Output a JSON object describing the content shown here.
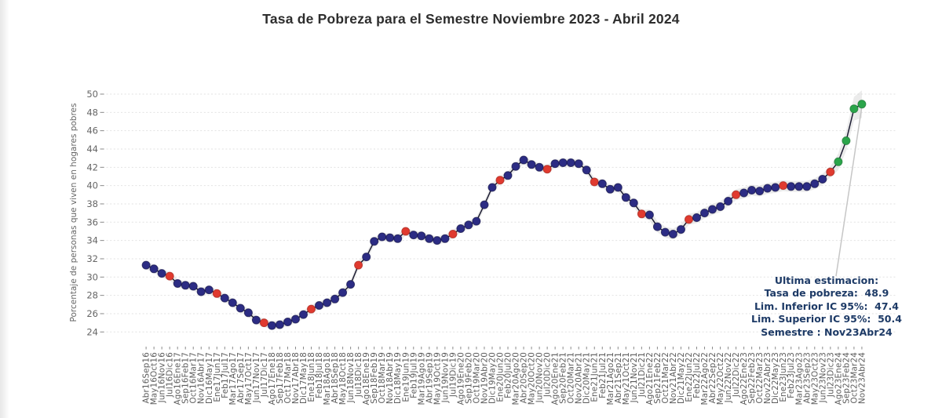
{
  "title": "Tasa de Pobreza para el Semestre Noviembre 2023 - Abril 2024",
  "annotation": {
    "lines": [
      "Ultima estimacion:",
      "Tasa de pobreza:  48.9",
      "Lim. Inferior IC 95%:  47.4",
      "Lim. Superior IC 95%:  50.4",
      "Semestre : Nov23Abr24"
    ],
    "ultima_estimacion": {
      "tasa_de_pobreza": 48.9,
      "lim_inferior_ic95": 47.4,
      "lim_superior_ic95": 50.4,
      "semestre": "Nov23Abr24"
    }
  },
  "colors": {
    "point_nowcast": "#2c2c84",
    "point_nowcast_edge": "#17174d",
    "point_official": "#e03a2f",
    "point_official_edge": "#a9251c",
    "point_estimate": "#2aa54a",
    "point_estimate_edge": "#1d7a35",
    "series_line": "#1d1d33",
    "grid": "#e2e2e2",
    "tick": "#8a8a8a",
    "axis_text": "#666666",
    "ci_band": "#d8d8d8",
    "arrow": "#c6c6c6",
    "annotation_text": "#1d3a66"
  },
  "chart_data": {
    "type": "line",
    "title": "Tasa de Pobreza para el Semestre Noviembre 2023 - Abril 2024",
    "xlabel": "",
    "ylabel": "Porcentaje de personas que viven en hogares pobres",
    "ylim": [
      24,
      50
    ],
    "y_ticks": [
      24,
      26,
      28,
      30,
      32,
      34,
      36,
      38,
      40,
      42,
      44,
      46,
      48,
      50
    ],
    "grid": true,
    "legend": "none",
    "categories": [
      "Abr16Sep16",
      "May16Oct16",
      "Jun16Nov16",
      "Jul16Dic16",
      "Ago16Ene17",
      "Sep16Feb17",
      "Oct16Mar17",
      "Nov16Abr17",
      "Dic16May17",
      "Ene17Jun17",
      "Feb17Jul17",
      "Mar17Ago17",
      "Abr17Sep17",
      "May17Oct17",
      "Jun17Nov17",
      "Jul17Dic17",
      "Ago17Ene18",
      "Sep17Feb18",
      "Oct17Mar18",
      "Nov17Abr18",
      "Dic17May18",
      "Ene18Jun18",
      "Feb18Jul18",
      "Mar18Ago18",
      "Abr18Sep18",
      "May18Oct18",
      "Jun18Nov18",
      "Jul18Dic18",
      "Ago18Ene19",
      "Sep18Feb19",
      "Oct18Mar19",
      "Nov18Abr19",
      "Dic18May19",
      "Ene19Jun19",
      "Feb19Jul19",
      "Mar19Ago19",
      "Abr19Sep19",
      "May19Oct19",
      "Jun19Nov19",
      "Jul19Dic19",
      "Ago19Ene20",
      "Sep19Feb20",
      "Oct19Mar20",
      "Nov19Abr20",
      "Dic19May20",
      "Ene20Jun20",
      "Feb20Jul20",
      "Mar20Ago20",
      "Abr20Sep20",
      "May20Oct20",
      "Jun20Nov20",
      "Jul20Dic20",
      "Ago20Ene21",
      "Sep20Feb21",
      "Oct20Mar21",
      "Nov20Abr21",
      "Dic20May21",
      "Ene21Jun21",
      "Feb21Jul21",
      "Mar21Ago21",
      "Abr21Sep21",
      "May21Oct21",
      "Jun21Nov21",
      "Jul21Dic21",
      "Ago21Ene22",
      "Sep21Feb22",
      "Oct21Mar22",
      "Nov21Abr22",
      "Dic21May22",
      "Ene22Jun22",
      "Feb22Jul22",
      "Mar22Ago22",
      "Abr22Sep22",
      "May22Oct22",
      "Jun22Nov22",
      "Jul22Dic22",
      "Ago22Ene23",
      "Sep22Feb23",
      "Oct22Mar23",
      "Nov22Abr23",
      "Dic22May23",
      "Ene23Jun23",
      "Feb23Jul23",
      "Mar23Ago23",
      "Abr23Sep23",
      "May23Oct23",
      "Jun23Nov23",
      "Jul23Dic23",
      "Ago23Ene24",
      "Sep23Feb24",
      "Oct23Mar24",
      "Nov23Abr24"
    ],
    "values": [
      31.3,
      30.9,
      30.4,
      30.1,
      29.3,
      29.1,
      29.0,
      28.4,
      28.6,
      28.2,
      27.7,
      27.2,
      26.6,
      26.1,
      25.3,
      25.0,
      24.7,
      24.8,
      25.1,
      25.4,
      25.9,
      26.5,
      26.9,
      27.2,
      27.6,
      28.3,
      29.2,
      31.3,
      32.2,
      33.9,
      34.4,
      34.3,
      34.2,
      35.0,
      34.6,
      34.5,
      34.2,
      34.0,
      34.2,
      34.7,
      35.3,
      35.7,
      36.1,
      37.9,
      39.8,
      40.6,
      41.1,
      42.1,
      42.8,
      42.3,
      42.0,
      41.8,
      42.4,
      42.5,
      42.5,
      42.4,
      41.7,
      40.4,
      40.2,
      39.6,
      39.8,
      38.7,
      38.1,
      36.9,
      36.8,
      35.5,
      34.9,
      34.7,
      35.2,
      36.3,
      36.5,
      37.0,
      37.4,
      37.7,
      38.3,
      39.0,
      39.2,
      39.5,
      39.4,
      39.7,
      39.8,
      40.0,
      39.9,
      39.9,
      39.9,
      40.2,
      40.7,
      41.5,
      42.6,
      44.9,
      48.4,
      48.9
    ],
    "point_series": {
      "official_indec_red_indices": [
        3,
        9,
        15,
        21,
        27,
        33,
        39,
        45,
        51,
        57,
        63,
        69,
        75,
        81,
        87
      ],
      "latest_estimate_green_indices": [
        88,
        89,
        90,
        91
      ]
    },
    "final_confidence_interval_95": [
      47.4,
      50.4
    ]
  }
}
